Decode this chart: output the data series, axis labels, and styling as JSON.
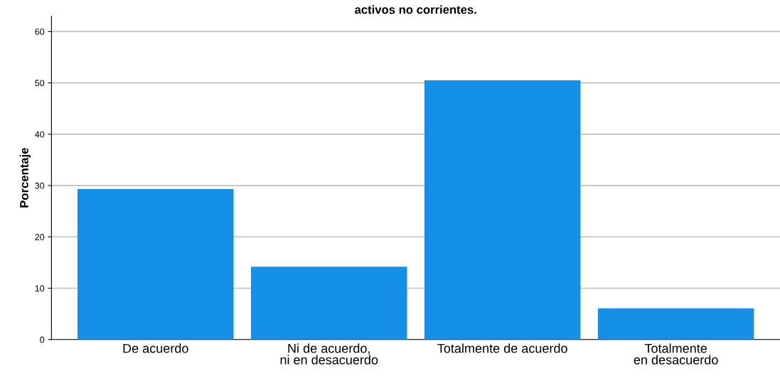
{
  "chart_data": {
    "type": "bar",
    "title": "activos no corrientes.",
    "ylabel": "Porcentaje",
    "categories": [
      "De acuerdo",
      "Ni de acuerdo, ni en desacuerdo",
      "Totalmente de acuerdo",
      "Totalmente en desacuerdo"
    ],
    "values": [
      29.3,
      14.2,
      50.5,
      6.1
    ],
    "color": "#1491e6",
    "ylim": [
      0,
      63
    ],
    "yticks": [
      0,
      10,
      20,
      30,
      40,
      50,
      60
    ],
    "grid": "y"
  }
}
